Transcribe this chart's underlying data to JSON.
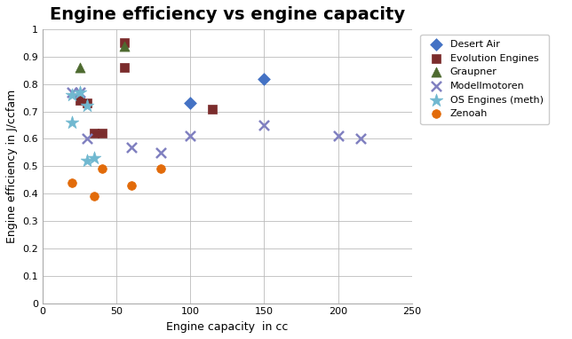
{
  "title": "Engine efficiency vs engine capacity",
  "xlabel": "Engine capacity  in cc",
  "ylabel": "Engine efficiency in J/ccfam",
  "xlim": [
    0,
    250
  ],
  "ylim": [
    0,
    1.0
  ],
  "xticks": [
    0,
    50,
    100,
    150,
    200,
    250
  ],
  "yticks": [
    0,
    0.1,
    0.2,
    0.3,
    0.4,
    0.5,
    0.6,
    0.7,
    0.8,
    0.9,
    1.0
  ],
  "series": [
    {
      "name": "Desert Air",
      "color": "#4472C4",
      "marker": "D",
      "markersize": 7,
      "points": [
        [
          100,
          0.73
        ],
        [
          150,
          0.82
        ]
      ]
    },
    {
      "name": "Evolution Engines",
      "color": "#7B2C2C",
      "marker": "s",
      "markersize": 7,
      "points": [
        [
          25,
          0.74
        ],
        [
          30,
          0.73
        ],
        [
          35,
          0.62
        ],
        [
          40,
          0.62
        ],
        [
          55,
          0.95
        ],
        [
          55,
          0.86
        ],
        [
          115,
          0.71
        ]
      ]
    },
    {
      "name": "Graupner",
      "color": "#4E6B30",
      "marker": "^",
      "markersize": 8,
      "points": [
        [
          25,
          0.86
        ],
        [
          55,
          0.94
        ]
      ]
    },
    {
      "name": "Modellmotoren",
      "color": "#8080C0",
      "marker": "x",
      "markersize": 8,
      "points": [
        [
          20,
          0.77
        ],
        [
          25,
          0.77
        ],
        [
          30,
          0.6
        ],
        [
          60,
          0.57
        ],
        [
          80,
          0.55
        ],
        [
          100,
          0.61
        ],
        [
          150,
          0.65
        ],
        [
          200,
          0.61
        ],
        [
          215,
          0.6
        ]
      ]
    },
    {
      "name": "OS Engines (meth)",
      "color": "#70B8D0",
      "marker": "*",
      "markersize": 10,
      "points": [
        [
          20,
          0.76
        ],
        [
          25,
          0.77
        ],
        [
          30,
          0.72
        ],
        [
          30,
          0.52
        ],
        [
          35,
          0.53
        ],
        [
          20,
          0.66
        ]
      ]
    },
    {
      "name": "Zenoah",
      "color": "#E26B0A",
      "marker": "o",
      "markersize": 7,
      "points": [
        [
          20,
          0.44
        ],
        [
          35,
          0.39
        ],
        [
          40,
          0.49
        ],
        [
          60,
          0.43
        ],
        [
          80,
          0.49
        ]
      ]
    }
  ],
  "background_color": "#FFFFFF",
  "grid_color": "#BBBBBB",
  "title_fontsize": 14,
  "axis_label_fontsize": 9,
  "tick_fontsize": 8,
  "legend_fontsize": 8,
  "figure_width": 6.44,
  "figure_height": 3.82,
  "dpi": 100
}
